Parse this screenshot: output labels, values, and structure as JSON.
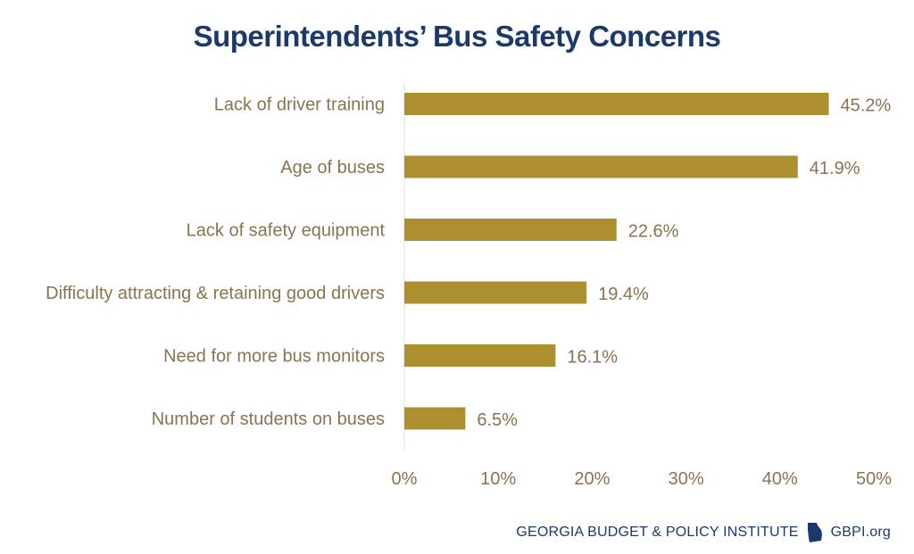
{
  "chart_data": {
    "type": "bar",
    "orientation": "horizontal",
    "title": "Superintendents’ Bus Safety Concerns",
    "categories": [
      "Lack of driver training",
      "Age of buses",
      "Lack of safety equipment",
      "Difficulty attracting & retaining good drivers",
      "Need for more bus monitors",
      "Number of students on buses"
    ],
    "values": [
      45.2,
      41.9,
      22.6,
      19.4,
      16.1,
      6.5
    ],
    "value_labels": [
      "45.2%",
      "41.9%",
      "22.6%",
      "19.4%",
      "16.1%",
      "6.5%"
    ],
    "xlim": [
      0,
      50
    ],
    "xticks": [
      0,
      10,
      20,
      30,
      40,
      50
    ],
    "xtick_labels": [
      "0%",
      "10%",
      "20%",
      "30%",
      "40%",
      "50%"
    ],
    "grid": false,
    "colors": {
      "bar": "#ad8f30",
      "text": "#8a7350",
      "title": "#1b3a6b",
      "footer": "#1b3a6b"
    }
  },
  "footer": {
    "org": "GEORGIA BUDGET & POLICY INSTITUTE",
    "site": "GBPI.org",
    "icon": "georgia-map-icon"
  }
}
